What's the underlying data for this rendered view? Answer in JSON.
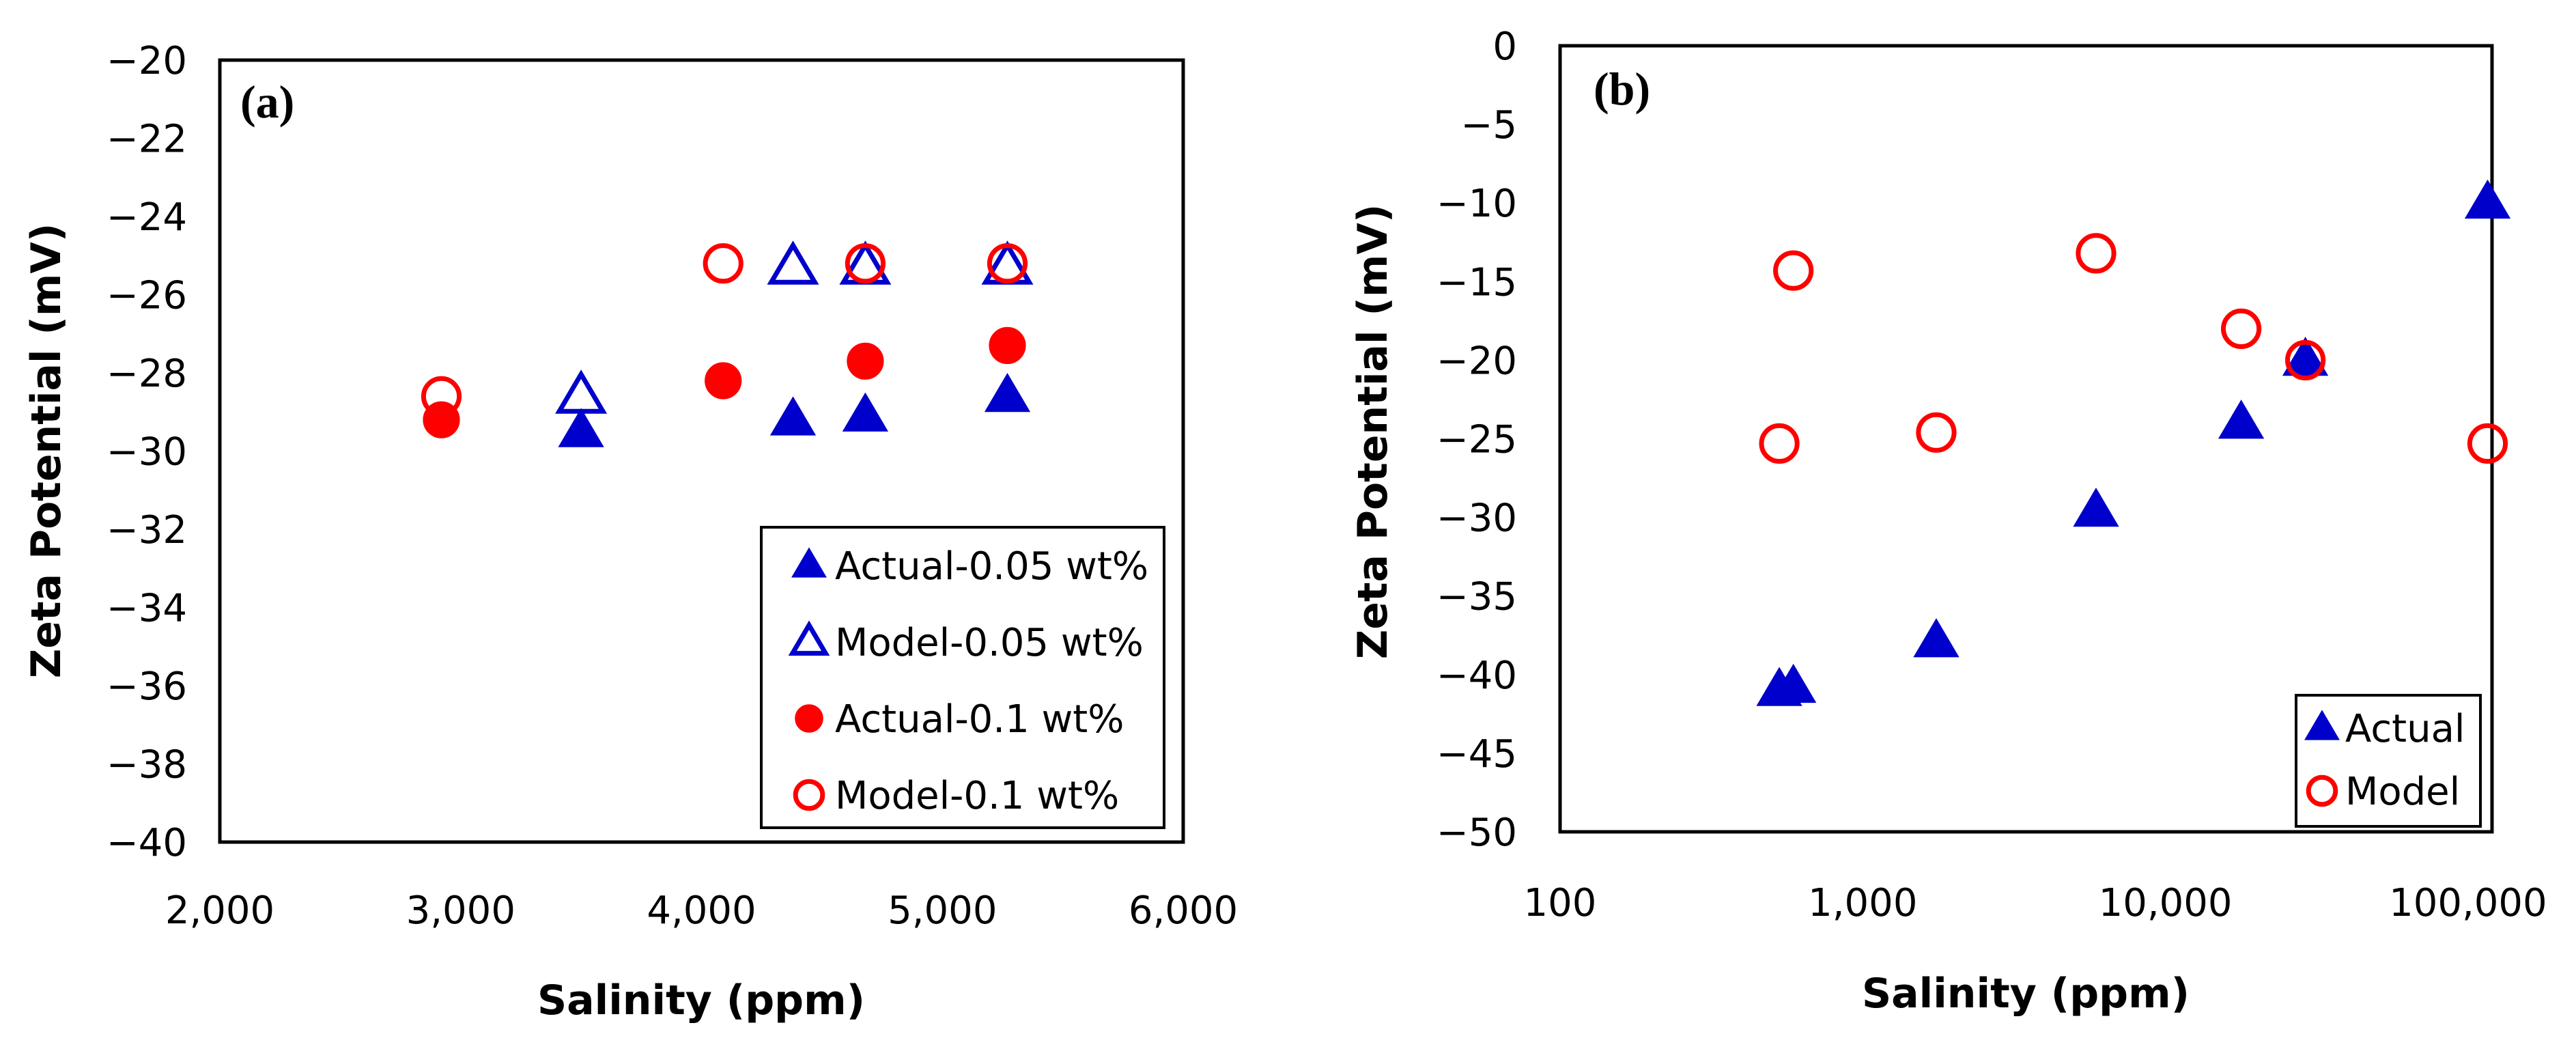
{
  "chart_data": [
    {
      "type": "scatter",
      "panel_label": "(a)",
      "xlabel": "Salinity (ppm)",
      "ylabel": "Zeta Potential (mV)",
      "xscale": "linear",
      "xlim": [
        2000,
        6000
      ],
      "ylim": [
        -40,
        -20
      ],
      "xticks": [
        2000,
        3000,
        4000,
        5000,
        6000
      ],
      "xtick_labels": [
        "2,000",
        "3,000",
        "4,000",
        "5,000",
        "6,000"
      ],
      "yticks": [
        -20,
        -22,
        -24,
        -26,
        -28,
        -30,
        -32,
        -34,
        -36,
        -38,
        -40
      ],
      "ytick_labels": [
        "−20",
        "−22",
        "−24",
        "−26",
        "−28",
        "−30",
        "−32",
        "−34",
        "−36",
        "−38",
        "−40"
      ],
      "grid": false,
      "legend_position": "bottom-right",
      "series": [
        {
          "name": "Actual-0.05 wt%",
          "marker": "triangle-filled",
          "color": "#0000CC",
          "points": [
            [
              3500,
              -29.5
            ],
            [
              4380,
              -29.2
            ],
            [
              4680,
              -29.1
            ],
            [
              5270,
              -28.6
            ]
          ]
        },
        {
          "name": "Model-0.05 wt%",
          "marker": "triangle-open",
          "color": "#0000CC",
          "points": [
            [
              3500,
              -28.6
            ],
            [
              4380,
              -25.3
            ],
            [
              4680,
              -25.3
            ],
            [
              5270,
              -25.3
            ]
          ]
        },
        {
          "name": "Actual-0.1 wt%",
          "marker": "circle-filled",
          "color": "#FF0000",
          "points": [
            [
              2920,
              -29.2
            ],
            [
              4090,
              -28.2
            ],
            [
              4680,
              -27.7
            ],
            [
              5270,
              -27.3
            ]
          ]
        },
        {
          "name": "Model-0.1 wt%",
          "marker": "circle-open",
          "color": "#FF0000",
          "points": [
            [
              2920,
              -28.6
            ],
            [
              4090,
              -25.2
            ],
            [
              4680,
              -25.2
            ],
            [
              5270,
              -25.2
            ]
          ]
        }
      ]
    },
    {
      "type": "scatter",
      "panel_label": "(b)",
      "xlabel": "Salinity (ppm)",
      "ylabel": "Zeta Potential (mV)",
      "xscale": "log",
      "xlim": [
        100,
        120000
      ],
      "ylim": [
        -50,
        0
      ],
      "xticks": [
        100,
        1000,
        10000,
        100000
      ],
      "xtick_labels": [
        "100",
        "1,000",
        "10,000",
        "100,000"
      ],
      "yticks": [
        0,
        -5,
        -10,
        -15,
        -20,
        -25,
        -30,
        -35,
        -40,
        -45,
        -50
      ],
      "ytick_labels": [
        "0",
        "−5",
        "−10",
        "−15",
        "−20",
        "−25",
        "−30",
        "−35",
        "−40",
        "−45",
        "−50"
      ],
      "grid": false,
      "legend_position": "bottom-right",
      "series": [
        {
          "name": "Actual",
          "marker": "triangle-filled",
          "color": "#0000CC",
          "points": [
            [
              530,
              -41
            ],
            [
              590,
              -40.8
            ],
            [
              1750,
              -37.9
            ],
            [
              5900,
              -29.6
            ],
            [
              17800,
              -24
            ],
            [
              29000,
              -20
            ],
            [
              116000,
              -10
            ]
          ]
        },
        {
          "name": "Model",
          "marker": "circle-open",
          "color": "#FF0000",
          "points": [
            [
              530,
              -25.3
            ],
            [
              590,
              -14.3
            ],
            [
              1750,
              -24.6
            ],
            [
              5900,
              -13.2
            ],
            [
              17800,
              -18
            ],
            [
              29000,
              -20
            ],
            [
              116000,
              -25.3
            ]
          ]
        }
      ]
    }
  ]
}
